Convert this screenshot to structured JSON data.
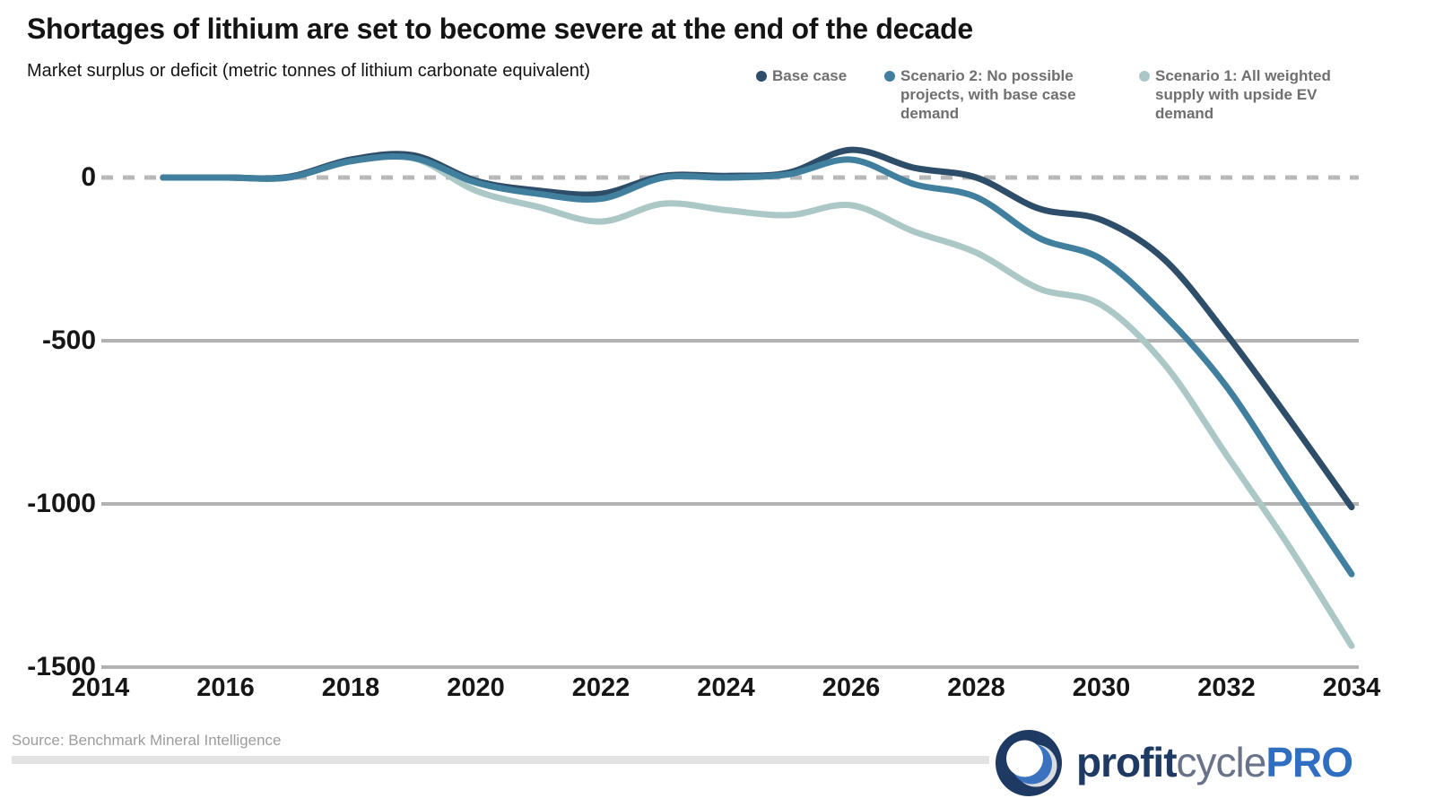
{
  "header": {
    "title": "Shortages of lithium are set to become severe at the end of the decade",
    "subtitle": "Market surplus or deficit (metric tonnes of lithium carbonate equivalent)"
  },
  "legend": [
    {
      "label": "Base case",
      "color": "#2e4d68"
    },
    {
      "label": "Scenario 2: No possible projects, with base case demand",
      "color": "#417f9e"
    },
    {
      "label": "Scenario 1: All weighted supply with upside EV demand",
      "color": "#abc7c6"
    }
  ],
  "chart_data": {
    "type": "line",
    "title": "Shortages of lithium are set to become severe at the end of the decade",
    "ylabel": "Market surplus or deficit (metric tonnes of lithium carbonate equivalent)",
    "x": [
      2015,
      2016,
      2017,
      2018,
      2019,
      2020,
      2021,
      2022,
      2023,
      2024,
      2025,
      2026,
      2027,
      2028,
      2029,
      2030,
      2031,
      2032,
      2033,
      2034
    ],
    "series": [
      {
        "name": "Base case",
        "color": "#2e4d68",
        "values": [
          0,
          0,
          2,
          55,
          68,
          -10,
          -40,
          -50,
          5,
          5,
          15,
          85,
          30,
          0,
          -95,
          -130,
          -250,
          -480,
          -740,
          -1010
        ]
      },
      {
        "name": "Scenario 2: No possible projects, with base case demand",
        "color": "#417f9e",
        "values": [
          0,
          0,
          0,
          50,
          60,
          -15,
          -50,
          -65,
          0,
          0,
          10,
          55,
          -20,
          -60,
          -185,
          -250,
          -420,
          -640,
          -930,
          -1215
        ]
      },
      {
        "name": "Scenario 1: All weighted supply with upside EV demand",
        "color": "#abc7c6",
        "values": [
          0,
          0,
          0,
          50,
          60,
          -40,
          -90,
          -135,
          -80,
          -100,
          -115,
          -85,
          -165,
          -230,
          -340,
          -390,
          -570,
          -850,
          -1130,
          -1435
        ]
      }
    ],
    "xticks": [
      "2014",
      "2016",
      "2018",
      "2020",
      "2022",
      "2024",
      "2026",
      "2028",
      "2030",
      "2032",
      "2034"
    ],
    "yticks": [
      "0",
      "-500",
      "-1000",
      "-1500"
    ],
    "ytick_values": [
      0,
      -500,
      -1000,
      -1500
    ],
    "xlim": [
      2014,
      2034
    ],
    "ylim": [
      -1500,
      100
    ],
    "zero_line_style": "dashed",
    "grid": "horizontal",
    "legend_position": "top-right"
  },
  "footer": {
    "source": "Source: Benchmark Mineral Intelligence",
    "logo": {
      "part1": "profit",
      "part2": "cycle",
      "part3": "PRO"
    }
  },
  "colors": {
    "gridline": "#b2b2b2",
    "zero_line": "#b9b9b9",
    "text": "#141414",
    "legend_text": "#6f6f6f",
    "logo_navy": "#1e3a63",
    "logo_blue": "#2f6ec1"
  }
}
